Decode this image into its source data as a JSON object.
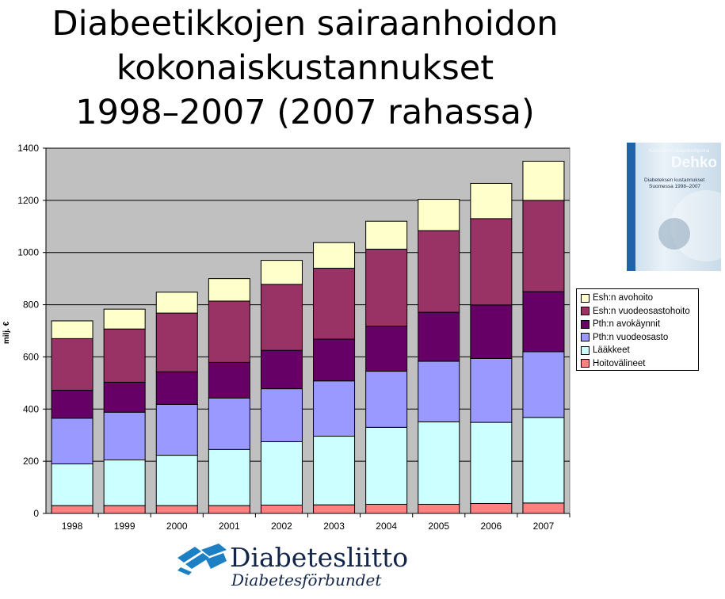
{
  "slide": {
    "title_lines": [
      "Diabeetikkojen sairaanhoidon",
      "kokonaiskustannukset",
      "1998–2007 (2007 rahassa)"
    ]
  },
  "chart_data": {
    "type": "bar",
    "stacked": true,
    "categories": [
      "1998",
      "1999",
      "2000",
      "2001",
      "2002",
      "2003",
      "2004",
      "2005",
      "2006",
      "2007"
    ],
    "ylabel": "milj. €",
    "ylim": [
      0,
      1400
    ],
    "yticks": [
      "0",
      "200",
      "400",
      "600",
      "800",
      "1000",
      "1200",
      "1400"
    ],
    "grid": true,
    "legend_position": "right",
    "plot_background": "#c0c0c0",
    "series": [
      {
        "name": "Hoitovälineet",
        "color": "#ff8080",
        "values": [
          30,
          30,
          30,
          30,
          32,
          33,
          35,
          35,
          38,
          40
        ]
      },
      {
        "name": "Lääkkeet",
        "color": "#ccffff",
        "values": [
          160,
          175,
          193,
          215,
          243,
          263,
          295,
          316,
          311,
          328
        ]
      },
      {
        "name": "Pth:n vuodeosasto",
        "color": "#9999ff",
        "values": [
          175,
          183,
          195,
          197,
          203,
          212,
          215,
          232,
          245,
          252
        ]
      },
      {
        "name": "Pth:n avokäynnit",
        "color": "#660066",
        "values": [
          107,
          115,
          125,
          137,
          147,
          160,
          173,
          188,
          205,
          230
        ]
      },
      {
        "name": "Esh:n vuodeosastohoito",
        "color": "#993366",
        "values": [
          198,
          204,
          225,
          235,
          253,
          272,
          295,
          313,
          331,
          350
        ]
      },
      {
        "name": "Esh:n avohoito",
        "color": "#ffffcc",
        "values": [
          68,
          76,
          80,
          86,
          92,
          98,
          107,
          120,
          135,
          150
        ]
      }
    ]
  },
  "legend_order": [
    "Esh:n avohoito",
    "Esh:n vuodeosastohoito",
    "Pth:n avokäynnit",
    "Pth:n vuodeosasto",
    "Lääkkeet",
    "Hoitovälineet"
  ],
  "report_cover": {
    "series_label": "Kansallinen diabetesohjelma",
    "brand": "Dehko",
    "subtitle_line1": "Diabeteksen kustannukset",
    "subtitle_line2": "Suomessa 1998–2007"
  },
  "logo": {
    "name": "Diabetesliitto",
    "name_swedish": "Diabetesförbundet",
    "color": "#13264a",
    "icon_color": "#1d7fc4"
  }
}
